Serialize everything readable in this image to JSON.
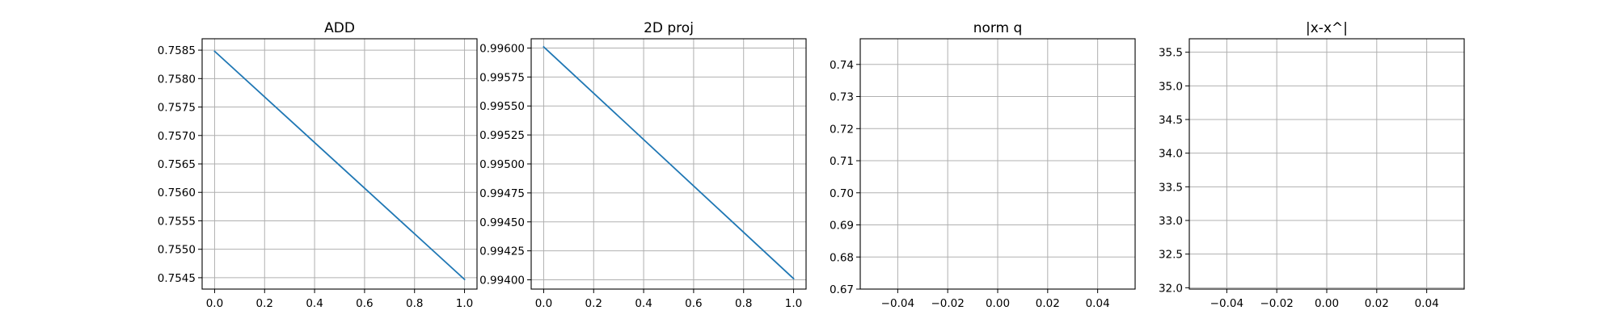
{
  "figure": {
    "background": "#ffffff"
  },
  "style": {
    "line_color": "#1f77b4",
    "grid_color": "#b0b0b0",
    "axis_color": "#000000"
  },
  "chart_data": [
    {
      "type": "line",
      "title": "ADD",
      "xlabel": "",
      "ylabel": "",
      "grid": true,
      "xlim": [
        -0.05,
        1.05
      ],
      "ylim": [
        0.7543,
        0.7587
      ],
      "xticks": [
        0.0,
        0.2,
        0.4,
        0.6,
        0.8,
        1.0
      ],
      "xtick_labels": [
        "0.0",
        "0.2",
        "0.4",
        "0.6",
        "0.8",
        "1.0"
      ],
      "yticks": [
        0.7545,
        0.755,
        0.7555,
        0.756,
        0.7565,
        0.757,
        0.7575,
        0.758,
        0.7585
      ],
      "ytick_labels": [
        "0.7545",
        "0.7550",
        "0.7555",
        "0.7560",
        "0.7565",
        "0.7570",
        "0.7575",
        "0.7580",
        "0.7585"
      ],
      "series": [
        {
          "x": [
            0,
            1
          ],
          "y": [
            0.75848,
            0.75447
          ]
        }
      ]
    },
    {
      "type": "line",
      "title": "2D proj",
      "xlabel": "",
      "ylabel": "",
      "grid": true,
      "xlim": [
        -0.05,
        1.05
      ],
      "ylim": [
        0.99392,
        0.99608
      ],
      "xticks": [
        0.0,
        0.2,
        0.4,
        0.6,
        0.8,
        1.0
      ],
      "xtick_labels": [
        "0.0",
        "0.2",
        "0.4",
        "0.6",
        "0.8",
        "1.0"
      ],
      "yticks": [
        0.994,
        0.99425,
        0.9945,
        0.99475,
        0.995,
        0.99525,
        0.9955,
        0.99575,
        0.996
      ],
      "ytick_labels": [
        "0.99400",
        "0.99425",
        "0.99450",
        "0.99475",
        "0.99500",
        "0.99525",
        "0.99550",
        "0.99575",
        "0.99600"
      ],
      "series": [
        {
          "x": [
            0,
            1
          ],
          "y": [
            0.99601,
            0.99401
          ]
        }
      ]
    },
    {
      "type": "line",
      "title": "norm q",
      "xlabel": "",
      "ylabel": "",
      "grid": true,
      "xlim": [
        -0.055,
        0.055
      ],
      "ylim": [
        0.67,
        0.748
      ],
      "xticks": [
        -0.04,
        -0.02,
        0.0,
        0.02,
        0.04
      ],
      "xtick_labels": [
        "−0.04",
        "−0.02",
        "0.00",
        "0.02",
        "0.04"
      ],
      "yticks": [
        0.67,
        0.68,
        0.69,
        0.7,
        0.71,
        0.72,
        0.73,
        0.74
      ],
      "ytick_labels": [
        "0.67",
        "0.68",
        "0.69",
        "0.70",
        "0.71",
        "0.72",
        "0.73",
        "0.74"
      ],
      "series": []
    },
    {
      "type": "line",
      "title": "|x-x^|",
      "xlabel": "",
      "ylabel": "",
      "grid": true,
      "xlim": [
        -0.055,
        0.055
      ],
      "ylim": [
        31.98,
        35.7
      ],
      "xticks": [
        -0.04,
        -0.02,
        0.0,
        0.02,
        0.04
      ],
      "xtick_labels": [
        "−0.04",
        "−0.02",
        "0.00",
        "0.02",
        "0.04"
      ],
      "yticks": [
        32.0,
        32.5,
        33.0,
        33.5,
        34.0,
        34.5,
        35.0,
        35.5
      ],
      "ytick_labels": [
        "32.0",
        "32.5",
        "33.0",
        "33.5",
        "34.0",
        "34.5",
        "35.0",
        "35.5"
      ],
      "series": []
    }
  ]
}
